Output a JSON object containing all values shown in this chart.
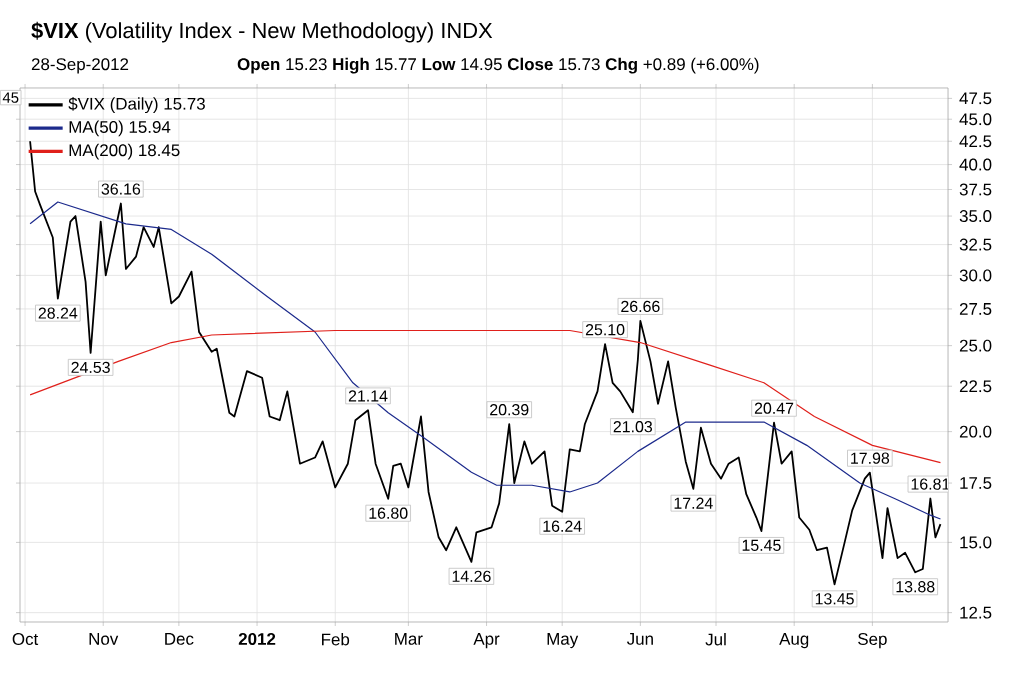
{
  "chart_data": {
    "type": "line",
    "title": "**$VIX** (Volatility Index - New Methodology) INDX",
    "subtitle": "**Open** 15.23 **High** 15.77 **Low** 14.95 **Close** 15.73 **Chg** +0.89 (+6.00%)",
    "log": "y",
    "grid": true,
    "legend": "top left",
    "marker": "none",
    "line_style": "solid",
    "xlim": [
      "2011-09-29",
      "2012-10-01"
    ],
    "ylim": [
      12.2,
      48.8
    ],
    "xticks": [
      {
        "value": "2011-10-01",
        "label": "Oct"
      },
      {
        "value": "2011-11-01",
        "label": "Nov"
      },
      {
        "value": "2011-12-01",
        "label": "Dec"
      },
      {
        "value": "2012-01-01",
        "label": "**2012**"
      },
      {
        "value": "2012-02-01",
        "label": "Feb"
      },
      {
        "value": "2012-03-01",
        "label": "Mar"
      },
      {
        "value": "2012-04-01",
        "label": "Apr"
      },
      {
        "value": "2012-05-01",
        "label": "May"
      },
      {
        "value": "2012-06-01",
        "label": "Jun"
      },
      {
        "value": "2012-07-01",
        "label": "Jul"
      },
      {
        "value": "2012-08-01",
        "label": "Aug"
      },
      {
        "value": "2012-09-01",
        "label": "Sep"
      }
    ],
    "yticks": [
      12.5,
      {
        "value": 15,
        "label": "15.0"
      },
      17.5,
      {
        "value": 20,
        "label": "20.0"
      },
      22.5,
      {
        "value": 25,
        "label": "25.0"
      },
      27.5,
      {
        "value": 30,
        "label": "30.0"
      },
      32.5,
      {
        "value": 35,
        "label": "35.0"
      },
      37.5,
      {
        "value": 40,
        "label": "40.0"
      },
      42.5,
      {
        "value": 45,
        "label": "45.0"
      },
      47.5
    ],
    "series": [
      {
        "name": "$VIX (Daily) 15.73",
        "color": "#000000",
        "x": [
          "2011-10-03",
          "2011-10-05",
          "2011-10-07",
          "2011-10-12",
          "2011-10-14",
          "2011-10-19",
          "2011-10-21",
          "2011-10-25",
          "2011-10-27",
          "2011-10-31",
          "2011-11-02",
          "2011-11-08",
          "2011-11-10",
          "2011-11-14",
          "2011-11-17",
          "2011-11-21",
          "2011-11-23",
          "2011-11-28",
          "2011-12-01",
          "2011-12-06",
          "2011-12-09",
          "2011-12-14",
          "2011-12-16",
          "2011-12-21",
          "2011-12-23",
          "2011-12-28",
          "2012-01-03",
          "2012-01-06",
          "2012-01-10",
          "2012-01-13",
          "2012-01-18",
          "2012-01-24",
          "2012-01-27",
          "2012-02-01",
          "2012-02-06",
          "2012-02-09",
          "2012-02-14",
          "2012-02-17",
          "2012-02-22",
          "2012-02-24",
          "2012-02-27",
          "2012-03-01",
          "2012-03-06",
          "2012-03-09",
          "2012-03-13",
          "2012-03-16",
          "2012-03-20",
          "2012-03-26",
          "2012-03-28",
          "2012-04-03",
          "2012-04-06",
          "2012-04-10",
          "2012-04-12",
          "2012-04-16",
          "2012-04-19",
          "2012-04-24",
          "2012-04-27",
          "2012-05-01",
          "2012-05-04",
          "2012-05-08",
          "2012-05-10",
          "2012-05-15",
          "2012-05-18",
          "2012-05-21",
          "2012-05-24",
          "2012-05-29",
          "2012-05-31",
          "2012-06-01",
          "2012-06-05",
          "2012-06-08",
          "2012-06-12",
          "2012-06-15",
          "2012-06-19",
          "2012-06-22",
          "2012-06-25",
          "2012-06-29",
          "2012-07-03",
          "2012-07-06",
          "2012-07-10",
          "2012-07-13",
          "2012-07-17",
          "2012-07-19",
          "2012-07-24",
          "2012-07-27",
          "2012-07-31",
          "2012-08-03",
          "2012-08-07",
          "2012-08-10",
          "2012-08-14",
          "2012-08-17",
          "2012-08-21",
          "2012-08-24",
          "2012-08-29",
          "2012-08-31",
          "2012-09-05",
          "2012-09-07",
          "2012-09-11",
          "2012-09-14",
          "2012-09-18",
          "2012-09-21",
          "2012-09-24",
          "2012-09-26",
          "2012-09-28"
        ],
        "values": [
          42.5,
          37.3,
          36,
          33.1,
          28.24,
          34.5,
          35,
          29.5,
          24.53,
          34.5,
          30,
          36.16,
          30.5,
          31.5,
          34,
          32.3,
          34,
          27.9,
          28.4,
          30.3,
          25.9,
          24.6,
          24.8,
          21,
          20.8,
          23.4,
          23,
          20.8,
          20.6,
          22.2,
          18.4,
          18.7,
          19.5,
          17.3,
          18.4,
          20.6,
          21.14,
          18.4,
          16.8,
          18.3,
          18.4,
          17.3,
          20.8,
          17.1,
          15.2,
          14.7,
          15.6,
          14.26,
          15.4,
          15.6,
          16.6,
          20.39,
          17.5,
          19.5,
          18.4,
          19,
          16.5,
          16.24,
          19.1,
          19,
          20.4,
          22.2,
          25.1,
          22.7,
          22.2,
          21.03,
          24.1,
          26.66,
          24,
          21.5,
          24,
          21.3,
          18.5,
          17.24,
          20.2,
          18.4,
          17.7,
          18.4,
          18.7,
          17,
          16,
          15.45,
          20.47,
          18.4,
          19,
          16,
          15.5,
          14.7,
          14.8,
          13.45,
          15,
          16.3,
          17.7,
          17.98,
          14.4,
          16.4,
          14.4,
          14.6,
          13.88,
          14,
          16.81,
          15.2,
          15.73
        ]
      },
      {
        "name": "MA(50) 15.94",
        "color": "#1c2a8c",
        "x": [
          "2011-10-03",
          "2011-10-14",
          "2011-11-10",
          "2011-11-28",
          "2011-12-14",
          "2012-01-05",
          "2012-01-24",
          "2012-02-08",
          "2012-02-22",
          "2012-03-07",
          "2012-03-26",
          "2012-04-05",
          "2012-04-19",
          "2012-05-04",
          "2012-05-15",
          "2012-05-31",
          "2012-06-19",
          "2012-07-10",
          "2012-07-20",
          "2012-08-06",
          "2012-08-27",
          "2012-09-10",
          "2012-09-24",
          "2012-09-28"
        ],
        "values": [
          34.3,
          36.3,
          34.3,
          33.8,
          31.7,
          28.4,
          25.9,
          22.7,
          21,
          19.7,
          18,
          17.4,
          17.4,
          17.1,
          17.5,
          19,
          20.5,
          20.5,
          20.5,
          19.3,
          17.5,
          16.8,
          16.1,
          15.94
        ]
      },
      {
        "name": "MA(200) 18.45",
        "color": "#e0201b",
        "x": [
          "2011-10-03",
          "2011-11-07",
          "2011-11-28",
          "2011-12-14",
          "2012-02-01",
          "2012-03-27",
          "2012-05-04",
          "2012-06-01",
          "2012-06-28",
          "2012-07-20",
          "2012-08-09",
          "2012-09-01",
          "2012-09-28"
        ],
        "values": [
          22,
          24,
          25.2,
          25.7,
          26,
          26,
          26,
          25.2,
          23.8,
          22.7,
          20.8,
          19.3,
          18.45
        ]
      }
    ],
    "annotations": [
      "28-Sep-2012",
      "45",
      {
        "text": "28.24",
        "x": "2011-10-14",
        "y": 28.24
      },
      {
        "text": "24.53",
        "x": "2011-10-27",
        "y": 24.53
      },
      {
        "text": "36.16",
        "x": "2011-11-08",
        "y": 36.16
      },
      {
        "text": "21.14",
        "x": "2012-02-14",
        "y": 21.14
      },
      {
        "text": "16.80",
        "x": "2012-02-22",
        "y": 16.8
      },
      {
        "text": "14.26",
        "x": "2012-03-26",
        "y": 14.26
      },
      {
        "text": "20.39",
        "x": "2012-04-10",
        "y": 20.39
      },
      {
        "text": "16.24",
        "x": "2012-05-01",
        "y": 16.24
      },
      {
        "text": "25.10",
        "x": "2012-05-18",
        "y": 25.1
      },
      {
        "text": "21.03",
        "x": "2012-05-29",
        "y": 21.03
      },
      {
        "text": "26.66",
        "x": "2012-06-01",
        "y": 26.66
      },
      {
        "text": "17.24",
        "x": "2012-06-22",
        "y": 17.24
      },
      {
        "text": "15.45",
        "x": "2012-07-19",
        "y": 15.45
      },
      {
        "text": "20.47",
        "x": "2012-07-24",
        "y": 20.47
      },
      {
        "text": "13.45",
        "x": "2012-08-17",
        "y": 13.45
      },
      {
        "text": "17.98",
        "x": "2012-08-31",
        "y": 17.98
      },
      {
        "text": "13.88",
        "x": "2012-09-18",
        "y": 13.88
      },
      {
        "text": "16.81",
        "x": "2012-09-24",
        "y": 16.81
      }
    ]
  }
}
